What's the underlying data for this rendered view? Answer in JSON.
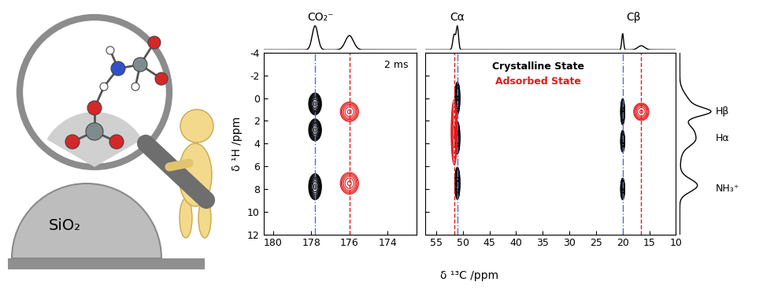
{
  "chart_data": {
    "type": "contour",
    "xlabel": "δ ¹³C /ppm",
    "ylabel": "δ ¹H /ppm",
    "ylim": [
      12,
      -4
    ],
    "yticks": [
      -4,
      -2,
      0,
      2,
      4,
      6,
      8,
      10,
      12
    ],
    "panels": [
      {
        "xlim": [
          180.5,
          172.5
        ],
        "xticks": [
          180,
          178,
          176,
          174
        ],
        "annotation": "2 ms"
      },
      {
        "xlim": [
          57,
          10
        ],
        "xticks": [
          55,
          50,
          45,
          40,
          35,
          30,
          25,
          20,
          15,
          10
        ]
      }
    ],
    "peak_labels": [
      {
        "label": "CO₂⁻",
        "x": 177.5
      },
      {
        "label": "Cα",
        "x": 51
      },
      {
        "label": "Cβ",
        "x": 18
      }
    ],
    "proton_labels": [
      {
        "label": "Hβ",
        "y": 1.2
      },
      {
        "label": "Hα",
        "y": 3.5
      },
      {
        "label": "NH₃⁺",
        "y": 8
      }
    ],
    "series": [
      {
        "name": "Crystalline State",
        "color": "#000000",
        "reference_lines": [
          177.8,
          51.0,
          20.0
        ],
        "reference_color": "#4f6fd0",
        "line_style": "dashdot",
        "peaks": [
          {
            "x": 177.8,
            "y": 0.5,
            "x_width": 0.35,
            "y_width": 1.0
          },
          {
            "x": 177.8,
            "y": 2.8,
            "x_width": 0.35,
            "y_width": 1.0
          },
          {
            "x": 177.8,
            "y": 7.8,
            "x_width": 0.35,
            "y_width": 1.2
          },
          {
            "x": 51.0,
            "y": 0.0,
            "x_width": 0.5,
            "y_width": 1.5
          },
          {
            "x": 51.0,
            "y": 3.5,
            "x_width": 0.5,
            "y_width": 1.5
          },
          {
            "x": 51.0,
            "y": 7.5,
            "x_width": 0.5,
            "y_width": 1.5
          },
          {
            "x": 20.0,
            "y": 1.2,
            "x_width": 0.4,
            "y_width": 1.2
          },
          {
            "x": 20.0,
            "y": 3.8,
            "x_width": 0.4,
            "y_width": 1.0
          },
          {
            "x": 20.0,
            "y": 8.0,
            "x_width": 0.4,
            "y_width": 1.0
          }
        ]
      },
      {
        "name": "Adsorbed State",
        "color": "#e41a1c",
        "reference_lines": [
          176.0,
          51.6,
          16.5
        ],
        "reference_color": "#e41a1c",
        "line_style": "dashed",
        "peaks": [
          {
            "x": 176.0,
            "y": 1.2,
            "x_width": 0.5,
            "y_width": 0.9
          },
          {
            "x": 176.0,
            "y": 7.5,
            "x_width": 0.5,
            "y_width": 1.0
          },
          {
            "x": 51.6,
            "y": 3.0,
            "x_width": 0.6,
            "y_width": 3.0
          },
          {
            "x": 16.5,
            "y": 1.2,
            "x_width": 1.5,
            "y_width": 0.8
          }
        ]
      }
    ],
    "illustration_label": "SiO₂"
  }
}
